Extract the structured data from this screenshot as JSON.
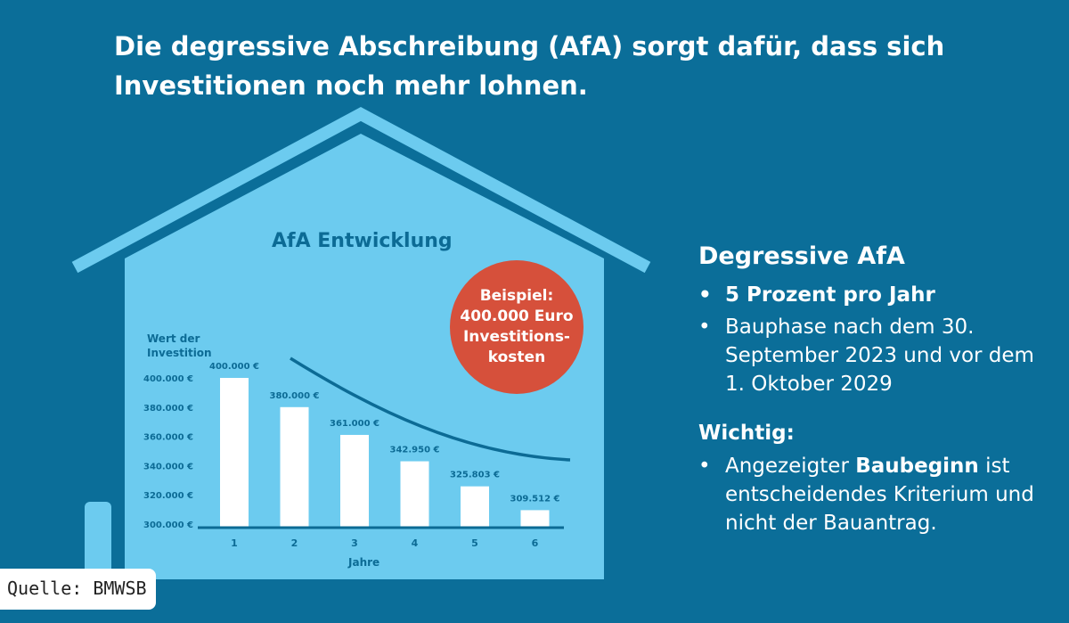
{
  "title": "Die degressive Abschreibung (AfA) sorgt dafür, dass sich Investitionen noch mehr lohnen.",
  "badge": {
    "line1": "Beispiel:",
    "line2": "400.000 Euro",
    "line3": "Investitions-",
    "line4": "kosten"
  },
  "info": {
    "heading": "Degressive AfA",
    "bullets": [
      "5 Prozent pro Jahr",
      "Bauphase nach dem 30. September 2023 und vor dem 1. Oktober 2029"
    ],
    "important_heading": "Wichtig:",
    "important_pre": "Angezeigter ",
    "important_bold": "Baubeginn",
    "important_post": " ist entscheidendes Kriterium und nicht der Bauantrag."
  },
  "source": "Quelle: BMWSB",
  "colors": {
    "background": "#0b6e99",
    "house": "#6ccbef",
    "badge": "#d6503b",
    "bars": "#ffffff",
    "axis": "#0c6b95"
  },
  "chart_data": {
    "type": "bar",
    "title": "AfA Entwicklung",
    "xlabel": "Jahre",
    "ylabel": "Wert der Investition",
    "categories": [
      "1",
      "2",
      "3",
      "4",
      "5",
      "6"
    ],
    "values": [
      400000,
      380000,
      361000,
      342950,
      325803,
      309512
    ],
    "data_labels": [
      "400.000 €",
      "380.000  €",
      "361.000 €",
      "342.950 €",
      "325.803 €",
      "309.512 €"
    ],
    "yticks": [
      "400.000 €",
      "380.000 €",
      "360.000 €",
      "340.000 €",
      "320.000 €",
      "300.000 €"
    ],
    "ytick_values": [
      400000,
      380000,
      360000,
      340000,
      320000,
      300000
    ],
    "ylim": [
      300000,
      400000
    ],
    "trend_line": "decreasing curve",
    "grid": false
  }
}
